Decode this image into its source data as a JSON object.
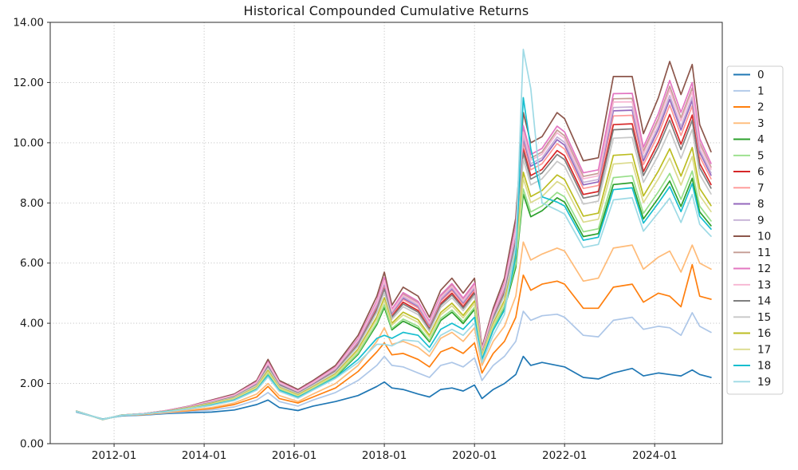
{
  "title": "Historical Compounded Cumulative Returns",
  "chart_data": {
    "type": "line",
    "title": "Historical Compounded Cumulative Returns",
    "xlabel": "",
    "ylabel": "",
    "grid": "dotted",
    "legend_position": "right outside",
    "legend_labels": [
      "0",
      "1",
      "2",
      "3",
      "4",
      "5",
      "6",
      "7",
      "8",
      "9",
      "10",
      "11",
      "12",
      "13",
      "14",
      "15",
      "16",
      "17",
      "18",
      "19"
    ],
    "xlim": [
      "2010-08",
      "2025-07"
    ],
    "ylim": [
      0,
      14
    ],
    "y_ticks": {
      "values": [
        0,
        2,
        4,
        6,
        8,
        10,
        12,
        14
      ],
      "labels": [
        "0.00",
        "2.00",
        "4.00",
        "6.00",
        "8.00",
        "10.00",
        "12.00",
        "14.00"
      ]
    },
    "x_ticks": [
      "2012-01",
      "2014-01",
      "2016-01",
      "2018-01",
      "2020-01",
      "2022-01",
      "2024-01"
    ],
    "x_dates": [
      "2011-03",
      "2011-10",
      "2012-03",
      "2012-09",
      "2013-03",
      "2013-09",
      "2014-03",
      "2014-09",
      "2015-03",
      "2015-06",
      "2015-09",
      "2016-02",
      "2016-06",
      "2016-12",
      "2017-06",
      "2017-11",
      "2018-01",
      "2018-03",
      "2018-06",
      "2018-10",
      "2019-01",
      "2019-04",
      "2019-07",
      "2019-10",
      "2020-01",
      "2020-03",
      "2020-06",
      "2020-09",
      "2020-12",
      "2021-02",
      "2021-04",
      "2021-07",
      "2021-11",
      "2022-01",
      "2022-06",
      "2022-10",
      "2023-02",
      "2023-07",
      "2023-10",
      "2024-02",
      "2024-05",
      "2024-08",
      "2024-11",
      "2025-01",
      "2025-04"
    ],
    "series": [
      {
        "name": "0",
        "color": "#1f77b4",
        "values": [
          1.05,
          0.82,
          0.92,
          0.95,
          1.0,
          1.03,
          1.05,
          1.12,
          1.3,
          1.45,
          1.2,
          1.1,
          1.25,
          1.4,
          1.6,
          1.9,
          2.05,
          1.85,
          1.8,
          1.65,
          1.55,
          1.8,
          1.85,
          1.75,
          1.95,
          1.5,
          1.8,
          2.0,
          2.3,
          2.9,
          2.6,
          2.7,
          2.6,
          2.55,
          2.2,
          2.15,
          2.35,
          2.5,
          2.25,
          2.35,
          2.3,
          2.25,
          2.45,
          2.3,
          2.2
        ]
      },
      {
        "name": "1",
        "color": "#aec7e8",
        "values": [
          1.06,
          0.81,
          0.93,
          0.96,
          1.02,
          1.07,
          1.12,
          1.22,
          1.45,
          1.7,
          1.4,
          1.25,
          1.45,
          1.7,
          2.1,
          2.6,
          2.9,
          2.6,
          2.55,
          2.35,
          2.2,
          2.6,
          2.7,
          2.55,
          2.85,
          2.1,
          2.6,
          2.9,
          3.4,
          4.4,
          4.1,
          4.25,
          4.3,
          4.2,
          3.6,
          3.55,
          4.1,
          4.2,
          3.8,
          3.9,
          3.85,
          3.6,
          4.35,
          3.9,
          3.7
        ]
      },
      {
        "name": "2",
        "color": "#ff7f0e",
        "values": [
          1.07,
          0.81,
          0.94,
          0.97,
          1.04,
          1.1,
          1.17,
          1.3,
          1.55,
          1.9,
          1.5,
          1.35,
          1.55,
          1.85,
          2.4,
          3.05,
          3.35,
          2.95,
          3.0,
          2.8,
          2.55,
          3.05,
          3.2,
          3.0,
          3.35,
          2.35,
          3.0,
          3.4,
          4.2,
          5.6,
          5.1,
          5.3,
          5.4,
          5.3,
          4.5,
          4.5,
          5.2,
          5.3,
          4.7,
          5.0,
          4.9,
          4.55,
          5.95,
          4.9,
          4.8
        ]
      },
      {
        "name": "3",
        "color": "#ffbb78",
        "values": [
          1.07,
          0.81,
          0.94,
          0.98,
          1.05,
          1.12,
          1.2,
          1.35,
          1.65,
          2.0,
          1.6,
          1.4,
          1.65,
          2.0,
          2.6,
          3.4,
          3.85,
          3.3,
          3.4,
          3.2,
          2.9,
          3.5,
          3.7,
          3.4,
          3.85,
          2.6,
          3.4,
          3.9,
          4.9,
          6.7,
          6.1,
          6.3,
          6.5,
          6.4,
          5.4,
          5.5,
          6.5,
          6.6,
          5.8,
          6.2,
          6.4,
          5.7,
          6.6,
          6.0,
          5.8
        ]
      },
      {
        "name": "4",
        "color": "#2ca02c",
        "values": [
          1.07,
          0.81,
          0.94,
          0.99,
          1.07,
          1.17,
          1.29,
          1.46,
          1.82,
          2.3,
          1.79,
          1.55,
          1.82,
          2.22,
          2.97,
          3.96,
          4.53,
          3.78,
          4.07,
          3.83,
          3.38,
          4.09,
          4.37,
          3.99,
          4.46,
          2.82,
          3.81,
          4.49,
          5.86,
          8.29,
          7.54,
          7.74,
          8.17,
          8.03,
          6.88,
          6.98,
          8.61,
          8.67,
          7.47,
          8.16,
          8.73,
          7.88,
          8.82,
          7.7,
          7.24
        ]
      },
      {
        "name": "5",
        "color": "#98df8a",
        "values": [
          1.07,
          0.81,
          0.94,
          0.99,
          1.07,
          1.17,
          1.3,
          1.47,
          1.83,
          2.33,
          1.81,
          1.56,
          1.83,
          2.25,
          3.01,
          4.02,
          4.61,
          3.83,
          4.14,
          3.9,
          3.43,
          4.16,
          4.44,
          4.06,
          4.53,
          2.85,
          3.85,
          4.56,
          5.97,
          8.46,
          7.7,
          7.9,
          8.35,
          8.2,
          7.04,
          7.14,
          8.84,
          8.9,
          7.65,
          8.37,
          8.98,
          8.12,
          9.06,
          7.89,
          7.4
        ]
      },
      {
        "name": "6",
        "color": "#d62728",
        "values": [
          1.08,
          0.8,
          0.95,
          0.99,
          1.09,
          1.21,
          1.38,
          1.57,
          1.97,
          2.58,
          1.96,
          1.69,
          1.97,
          2.43,
          3.32,
          4.48,
          5.18,
          4.24,
          4.7,
          4.42,
          3.84,
          4.65,
          5.0,
          4.55,
          5.04,
          3.03,
          4.19,
          5.05,
          6.77,
          9.8,
          8.91,
          9.11,
          9.74,
          9.57,
          8.28,
          8.38,
          10.6,
          10.63,
          9.04,
          10.02,
          10.94,
          9.95,
          10.92,
          9.31,
          8.61
        ]
      },
      {
        "name": "7",
        "color": "#ff9896",
        "values": [
          1.08,
          0.8,
          0.95,
          1.0,
          1.09,
          1.22,
          1.39,
          1.58,
          2.0,
          2.62,
          1.99,
          1.71,
          2.0,
          2.46,
          3.37,
          4.56,
          5.27,
          4.3,
          4.79,
          4.51,
          3.9,
          4.73,
          5.09,
          4.63,
          5.12,
          3.06,
          4.25,
          5.13,
          6.9,
          10.01,
          9.1,
          9.3,
          9.97,
          9.79,
          8.48,
          8.58,
          10.89,
          10.91,
          9.27,
          10.28,
          11.25,
          10.24,
          11.22,
          9.54,
          8.8
        ]
      },
      {
        "name": "8",
        "color": "#9467bd",
        "values": [
          1.08,
          0.8,
          0.95,
          1.0,
          1.09,
          1.22,
          1.4,
          1.59,
          2.01,
          2.64,
          2.0,
          1.72,
          2.01,
          2.48,
          3.4,
          4.6,
          5.33,
          4.34,
          4.84,
          4.56,
          3.94,
          4.78,
          5.14,
          4.68,
          5.17,
          3.08,
          4.28,
          5.18,
          6.98,
          10.14,
          9.22,
          9.42,
          10.1,
          9.92,
          8.6,
          8.7,
          11.06,
          11.08,
          9.4,
          10.44,
          11.44,
          10.42,
          11.4,
          9.68,
          8.92
        ]
      },
      {
        "name": "9",
        "color": "#c5b0d5",
        "values": [
          1.08,
          0.8,
          0.95,
          1.0,
          1.09,
          1.23,
          1.41,
          1.6,
          2.02,
          2.66,
          2.01,
          1.73,
          2.02,
          2.49,
          3.42,
          4.63,
          5.37,
          4.37,
          4.88,
          4.59,
          3.97,
          4.81,
          5.18,
          4.71,
          5.2,
          3.09,
          4.3,
          5.21,
          7.03,
          10.23,
          9.3,
          9.5,
          10.19,
          10.01,
          8.68,
          8.78,
          11.17,
          11.19,
          9.49,
          10.55,
          11.57,
          10.54,
          11.52,
          9.77,
          9.0
        ]
      },
      {
        "name": "10",
        "color": "#8c564b",
        "values": [
          1.08,
          0.8,
          0.95,
          1.0,
          1.1,
          1.25,
          1.45,
          1.65,
          2.1,
          2.8,
          2.1,
          1.8,
          2.1,
          2.6,
          3.6,
          4.9,
          5.7,
          4.6,
          5.2,
          4.9,
          4.2,
          5.1,
          5.5,
          5.0,
          5.5,
          3.2,
          4.5,
          5.5,
          7.5,
          11.0,
          10.0,
          10.2,
          11.0,
          10.8,
          9.4,
          9.5,
          12.2,
          12.2,
          10.3,
          11.5,
          12.7,
          11.6,
          12.6,
          10.6,
          9.7
        ]
      },
      {
        "name": "11",
        "color": "#c49c94",
        "values": [
          1.08,
          0.8,
          0.95,
          1.0,
          1.09,
          1.23,
          1.42,
          1.61,
          2.04,
          2.7,
          2.04,
          1.75,
          2.04,
          2.52,
          3.47,
          4.71,
          5.46,
          4.43,
          4.97,
          4.68,
          4.03,
          4.89,
          5.27,
          4.79,
          5.29,
          3.12,
          4.36,
          5.29,
          7.16,
          10.44,
          9.49,
          9.69,
          10.42,
          10.23,
          8.88,
          8.98,
          11.46,
          11.47,
          9.72,
          10.81,
          11.88,
          10.83,
          11.82,
          10.0,
          9.19
        ]
      },
      {
        "name": "12",
        "color": "#e377c2",
        "values": [
          1.08,
          0.8,
          0.95,
          1.0,
          1.1,
          1.24,
          1.43,
          1.62,
          2.06,
          2.72,
          2.05,
          1.76,
          2.06,
          2.54,
          3.5,
          4.75,
          5.52,
          4.47,
          5.02,
          4.73,
          4.07,
          4.94,
          5.32,
          4.84,
          5.34,
          3.14,
          4.39,
          5.34,
          7.24,
          10.57,
          9.61,
          9.81,
          10.55,
          10.36,
          9.0,
          9.1,
          11.63,
          11.64,
          9.85,
          10.97,
          12.07,
          11.01,
          12.0,
          10.14,
          9.31
        ]
      },
      {
        "name": "13",
        "color": "#f7b6d2",
        "values": [
          1.08,
          0.8,
          0.95,
          1.0,
          1.09,
          1.23,
          1.41,
          1.61,
          2.03,
          2.68,
          2.03,
          1.74,
          2.03,
          2.51,
          3.45,
          4.68,
          5.42,
          4.41,
          4.93,
          4.65,
          4.01,
          4.86,
          5.23,
          4.76,
          5.25,
          3.11,
          4.34,
          5.26,
          7.11,
          10.36,
          9.42,
          9.62,
          10.33,
          10.14,
          8.8,
          8.9,
          11.35,
          11.36,
          9.63,
          10.71,
          11.76,
          10.72,
          11.7,
          9.91,
          9.12
        ]
      },
      {
        "name": "14",
        "color": "#7f7f7f",
        "values": [
          1.08,
          0.8,
          0.95,
          0.99,
          1.08,
          1.21,
          1.37,
          1.56,
          1.96,
          2.55,
          1.95,
          1.68,
          1.96,
          2.41,
          3.29,
          4.44,
          5.13,
          4.2,
          4.64,
          4.37,
          3.8,
          4.6,
          4.94,
          4.5,
          4.99,
          3.01,
          4.16,
          5.0,
          6.69,
          9.67,
          8.79,
          8.99,
          9.61,
          9.44,
          8.16,
          8.26,
          10.43,
          10.46,
          8.91,
          9.86,
          10.75,
          9.77,
          10.74,
          9.17,
          8.49
        ]
      },
      {
        "name": "15",
        "color": "#c7c7c7",
        "values": [
          1.08,
          0.8,
          0.95,
          0.99,
          1.08,
          1.2,
          1.36,
          1.54,
          1.94,
          2.51,
          1.92,
          1.66,
          1.94,
          2.38,
          3.24,
          4.36,
          5.03,
          4.13,
          4.55,
          4.29,
          3.73,
          4.52,
          4.85,
          4.42,
          4.91,
          2.98,
          4.1,
          4.92,
          6.56,
          9.45,
          8.6,
          8.8,
          9.38,
          9.22,
          7.96,
          8.06,
          10.15,
          10.18,
          8.68,
          9.59,
          10.43,
          9.48,
          10.44,
          8.94,
          8.3
        ]
      },
      {
        "name": "16",
        "color": "#bcbd22",
        "values": [
          1.08,
          0.8,
          0.95,
          0.99,
          1.08,
          1.19,
          1.34,
          1.51,
          1.89,
          2.43,
          1.87,
          1.62,
          1.89,
          2.32,
          3.14,
          4.21,
          4.85,
          4.0,
          4.37,
          4.12,
          3.6,
          4.36,
          4.67,
          4.26,
          4.74,
          2.92,
          3.99,
          4.76,
          6.3,
          9.02,
          8.21,
          8.41,
          8.93,
          8.78,
          7.56,
          7.66,
          9.58,
          9.62,
          8.23,
          9.06,
          9.8,
          8.89,
          9.84,
          8.48,
          7.91
        ]
      },
      {
        "name": "17",
        "color": "#dbdb8d",
        "values": [
          1.07,
          0.8,
          0.94,
          0.99,
          1.07,
          1.18,
          1.32,
          1.5,
          1.87,
          2.39,
          1.85,
          1.6,
          1.87,
          2.29,
          3.09,
          4.14,
          4.76,
          3.94,
          4.28,
          4.03,
          3.54,
          4.28,
          4.58,
          4.18,
          4.66,
          2.89,
          3.94,
          4.68,
          6.17,
          8.81,
          8.01,
          8.21,
          8.71,
          8.56,
          7.36,
          7.46,
          9.29,
          9.34,
          8.01,
          8.8,
          9.49,
          8.59,
          9.54,
          8.25,
          7.71
        ]
      },
      {
        "name": "18",
        "color": "#17becf",
        "values": [
          1.07,
          0.81,
          0.94,
          0.99,
          1.07,
          1.16,
          1.29,
          1.45,
          1.8,
          2.27,
          1.77,
          1.54,
          1.8,
          2.2,
          2.8,
          3.5,
          3.6,
          3.5,
          3.7,
          3.6,
          3.2,
          3.8,
          4.0,
          3.8,
          4.2,
          2.8,
          3.77,
          4.44,
          6.2,
          11.5,
          9.8,
          8.2,
          8.03,
          7.9,
          6.76,
          6.86,
          8.44,
          8.5,
          7.33,
          8.0,
          8.54,
          7.71,
          8.64,
          7.56,
          7.13
        ]
      },
      {
        "name": "19",
        "color": "#9edae5",
        "values": [
          1.07,
          0.81,
          0.94,
          0.99,
          1.06,
          1.16,
          1.27,
          1.43,
          1.78,
          2.22,
          1.74,
          1.51,
          1.78,
          2.17,
          2.7,
          3.3,
          3.3,
          3.25,
          3.45,
          3.4,
          3.05,
          3.6,
          3.8,
          3.6,
          4.0,
          2.7,
          3.6,
          4.3,
          6.6,
          13.1,
          11.8,
          8.0,
          7.76,
          7.63,
          6.52,
          6.62,
          8.1,
          8.17,
          7.06,
          7.68,
          8.16,
          7.35,
          8.28,
          7.29,
          6.89
        ]
      }
    ]
  }
}
